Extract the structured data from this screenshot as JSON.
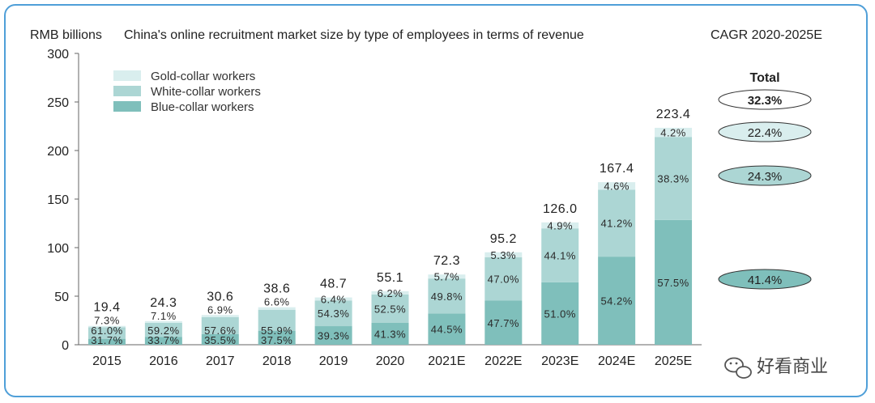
{
  "chart_data": {
    "type": "bar",
    "stacked": true,
    "title": "China's online recruitment market size by type of employees in terms of revenue",
    "ylabel": "RMB billions",
    "ylim": [
      0,
      300
    ],
    "yticks": [
      0,
      50,
      100,
      150,
      200,
      250,
      300
    ],
    "categories": [
      "2015",
      "2016",
      "2017",
      "2018",
      "2019",
      "2020",
      "2021E",
      "2022E",
      "2023E",
      "2024E",
      "2025E"
    ],
    "totals": [
      19.4,
      24.3,
      30.6,
      38.6,
      48.7,
      55.1,
      72.3,
      95.2,
      126.0,
      167.4,
      223.4
    ],
    "total_labels": [
      "19.4",
      "24.3",
      "30.6",
      "38.6",
      "48.7",
      "55.1",
      "72.3",
      "95.2",
      "126.0",
      "167.4",
      "223.4"
    ],
    "series": [
      {
        "name": "Blue-collar workers",
        "color": "#7fbfbb",
        "shares": [
          31.7,
          33.7,
          35.5,
          37.5,
          39.3,
          41.3,
          44.5,
          47.7,
          51.0,
          54.2,
          57.5
        ],
        "labels": [
          "31.7%",
          "33.7%",
          "35.5%",
          "37.5%",
          "39.3%",
          "41.3%",
          "44.5%",
          "47.7%",
          "51.0%",
          "54.2%",
          "57.5%"
        ]
      },
      {
        "name": "White-collar workers",
        "color": "#acd6d4",
        "shares": [
          61.0,
          59.2,
          57.6,
          55.9,
          54.3,
          52.5,
          49.8,
          47.0,
          44.1,
          41.2,
          38.3
        ],
        "labels": [
          "61.0%",
          "59.2%",
          "57.6%",
          "55.9%",
          "54.3%",
          "52.5%",
          "49.8%",
          "47.0%",
          "44.1%",
          "41.2%",
          "38.3%"
        ]
      },
      {
        "name": "Gold-collar workers",
        "color": "#d9eeee",
        "shares": [
          7.3,
          7.1,
          6.9,
          6.6,
          6.4,
          6.2,
          5.7,
          5.3,
          4.9,
          4.6,
          4.2
        ],
        "labels": [
          "7.3%",
          "7.1%",
          "6.9%",
          "6.6%",
          "6.4%",
          "6.2%",
          "5.7%",
          "5.3%",
          "4.9%",
          "4.6%",
          "4.2%"
        ]
      }
    ],
    "legend": {
      "placement": "top-left",
      "order": [
        "Gold-collar workers",
        "White-collar workers",
        "Blue-collar workers"
      ]
    },
    "cagr": {
      "header": "CAGR 2020-2025E",
      "total_header": "Total",
      "items": [
        {
          "series": "Total",
          "label": "32.3%",
          "color": "#ffffff"
        },
        {
          "series": "Gold-collar workers",
          "label": "22.4%",
          "color": "#d9eeee"
        },
        {
          "series": "White-collar workers",
          "label": "24.3%",
          "color": "#acd6d4"
        },
        {
          "series": "Blue-collar workers",
          "label": "41.4%",
          "color": "#7fbfbb"
        }
      ]
    }
  },
  "watermark": {
    "text": "好看商业",
    "icon": "wechat-icon"
  }
}
